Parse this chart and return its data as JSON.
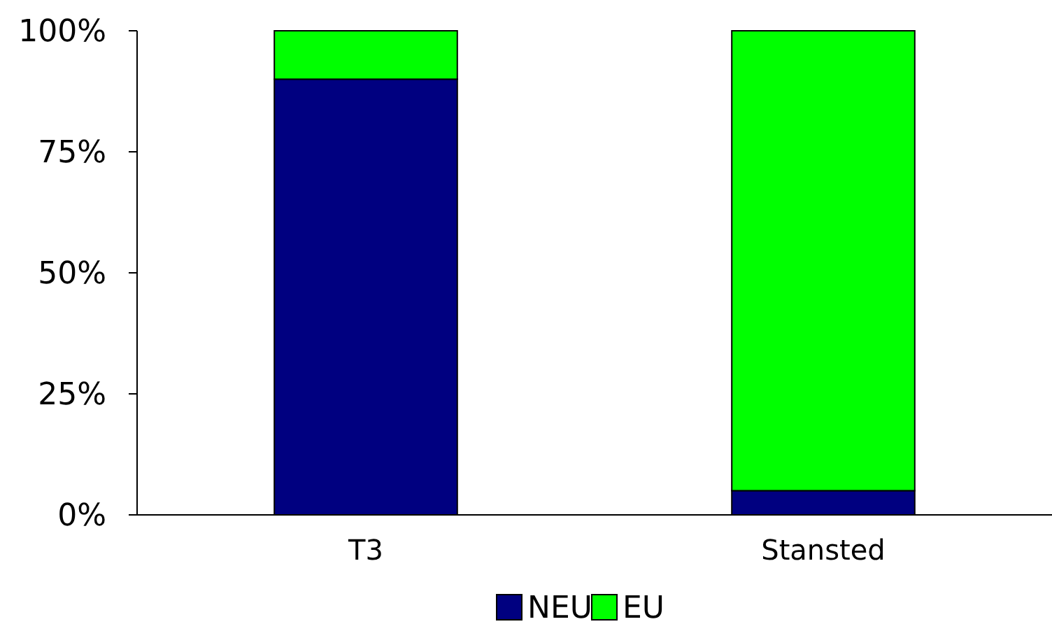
{
  "chart_data": {
    "type": "bar",
    "stacked": true,
    "categories": [
      "T3",
      "Stansted"
    ],
    "series": [
      {
        "name": "NEU",
        "color": "#000080",
        "values": [
          90,
          5
        ]
      },
      {
        "name": "EU",
        "color": "#00ff00",
        "values": [
          10,
          95
        ]
      }
    ],
    "ylim": [
      0,
      100
    ],
    "yticks": [
      {
        "value": 0,
        "label": "0%"
      },
      {
        "value": 25,
        "label": "25%"
      },
      {
        "value": 50,
        "label": "50%"
      },
      {
        "value": 75,
        "label": "75%"
      },
      {
        "value": 100,
        "label": "100%"
      }
    ],
    "grid": false,
    "legend": "bottom"
  }
}
